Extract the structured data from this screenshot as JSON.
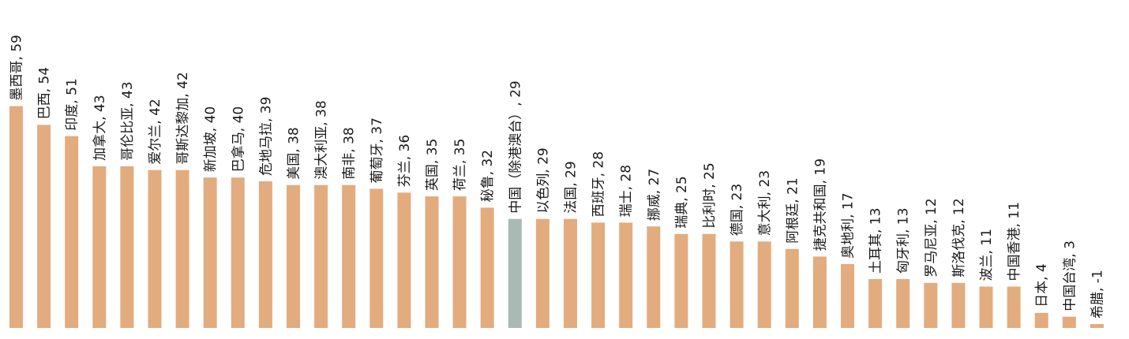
{
  "chart_data": {
    "type": "bar",
    "categories": [
      "墨西哥",
      "巴西",
      "印度",
      "加拿大",
      "哥伦比亚",
      "爱尔兰",
      "哥斯达黎加",
      "新加坡",
      "巴拿马",
      "危地马拉",
      "美国",
      "澳大利亚",
      "南非",
      "葡萄牙",
      "芬兰",
      "英国",
      "荷兰",
      "秘鲁",
      "中国（除港澳台）",
      "以色列",
      "法国",
      "西班牙",
      "瑞士",
      "挪威",
      "瑞典",
      "比利时",
      "德国",
      "意大利",
      "阿根廷",
      "捷克共和国",
      "奥地利",
      "土耳其",
      "匈牙利",
      "罗马尼亚",
      "斯洛伐克",
      "波兰",
      "中国香港",
      "日本",
      "中国台湾",
      "希腊"
    ],
    "values": [
      59,
      54,
      51,
      43,
      43,
      42,
      42,
      40,
      40,
      39,
      38,
      38,
      38,
      37,
      36,
      35,
      35,
      32,
      29,
      29,
      29,
      28,
      28,
      27,
      25,
      25,
      23,
      23,
      21,
      19,
      17,
      13,
      13,
      12,
      12,
      11,
      11,
      4,
      3,
      -1
    ],
    "labels": [
      "墨西哥, 59",
      "巴西, 54",
      "印度, 51",
      "加拿大, 43",
      "哥伦比亚, 43",
      "爱尔兰, 42",
      "哥斯达黎加, 42",
      "新加坡, 40",
      "巴拿马, 40",
      "危地马拉, 39",
      "美国, 38",
      "澳大利亚, 38",
      "南非, 38",
      "葡萄牙, 37",
      "芬兰, 36",
      "英国, 35",
      "荷兰, 35",
      "秘鲁, 32",
      "中国（除港澳台）, 29",
      "以色列, 29",
      "法国, 29",
      "西班牙, 28",
      "瑞士, 28",
      "挪威, 27",
      "瑞典, 25",
      "比利时, 25",
      "德国, 23",
      "意大利, 23",
      "阿根廷, 21",
      "捷克共和国, 19",
      "奥地利, 17",
      "土耳其, 13",
      "匈牙利, 13",
      "罗马尼亚, 12",
      "斯洛伐克, 12",
      "波兰, 11",
      "中国香港, 11",
      "日本, 4",
      "中国台湾, 3",
      "希腊, -1"
    ],
    "highlight_index": 18,
    "colors": {
      "bar": "#E2AC7F",
      "highlight": "#A9BAB4"
    },
    "ylim": [
      -1,
      59
    ],
    "grid": false,
    "legend": "none",
    "title": "",
    "xlabel": "",
    "ylabel": ""
  }
}
